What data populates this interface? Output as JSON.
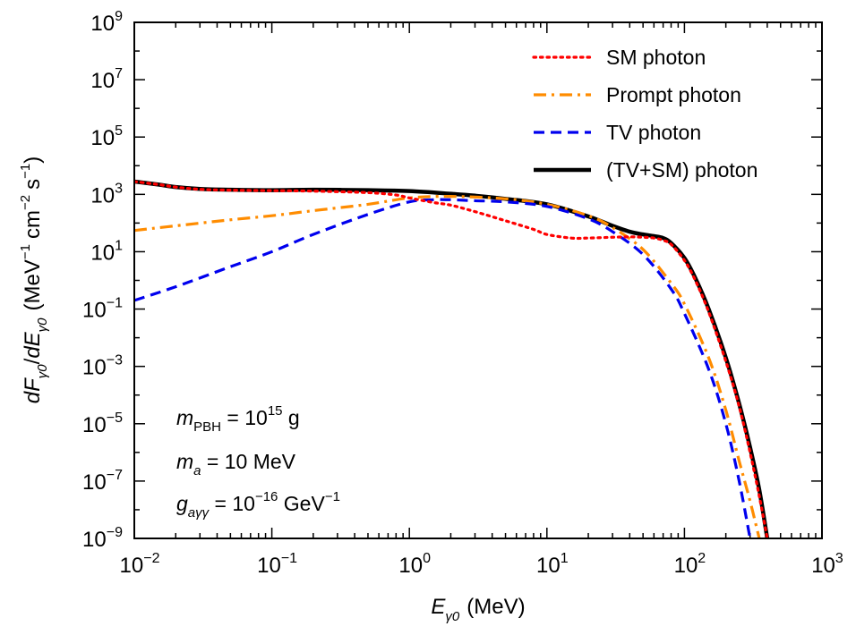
{
  "chart_data": {
    "type": "line",
    "x_scale": "log",
    "y_scale": "log",
    "xlim": [
      0.01,
      1000
    ],
    "ylim": [
      1e-09,
      1000000000.0
    ],
    "x_ticks": [
      {
        "base": "10",
        "exp": "−2",
        "value": 0.01
      },
      {
        "base": "10",
        "exp": "−1",
        "value": 0.1
      },
      {
        "base": "10",
        "exp": "0",
        "value": 1
      },
      {
        "base": "10",
        "exp": "1",
        "value": 10
      },
      {
        "base": "10",
        "exp": "2",
        "value": 100
      },
      {
        "base": "10",
        "exp": "3",
        "value": 1000
      }
    ],
    "y_ticks": [
      {
        "base": "10",
        "exp": "−9",
        "value": 1e-09
      },
      {
        "base": "10",
        "exp": "−7",
        "value": 1e-07
      },
      {
        "base": "10",
        "exp": "−5",
        "value": 1e-05
      },
      {
        "base": "10",
        "exp": "−3",
        "value": 0.001
      },
      {
        "base": "10",
        "exp": "−1",
        "value": 0.1
      },
      {
        "base": "10",
        "exp": "1",
        "value": 10
      },
      {
        "base": "10",
        "exp": "3",
        "value": 1000
      },
      {
        "base": "10",
        "exp": "5",
        "value": 100000.0
      },
      {
        "base": "10",
        "exp": "7",
        "value": 10000000.0
      },
      {
        "base": "10",
        "exp": "9",
        "value": 1000000000.0
      }
    ],
    "xlabel": {
      "var": "E",
      "sub": "γ0",
      "unit": "(MeV)"
    },
    "ylabel": {
      "num": "dF",
      "num_sub": "γ0",
      "slash": "/",
      "den": "dE",
      "den_sub": "γ0",
      "unit_open": "(MeV",
      "unit_exp1": "−1",
      "unit_mid": "cm",
      "unit_exp2": "−2",
      "unit_s": "s",
      "unit_exp3": "−1",
      "unit_close": ")"
    },
    "legend_position": "top-right",
    "series": [
      {
        "name": "SM photon",
        "color": "#ff0000",
        "style": "dotted",
        "x": [
          0.01,
          0.015,
          0.02,
          0.03,
          0.05,
          0.1,
          0.2,
          0.5,
          0.8,
          1.0,
          1.5,
          2,
          3,
          5,
          8,
          10,
          15,
          20,
          30,
          40,
          50,
          60,
          70,
          80,
          100,
          120,
          150,
          200,
          250,
          300,
          350,
          400
        ],
        "y": [
          2800,
          2200,
          1800,
          1500,
          1400,
          1350,
          1300,
          1150,
          950,
          750,
          520,
          420,
          250,
          120,
          60,
          40,
          30,
          30,
          32,
          33,
          32,
          30,
          25,
          18,
          5,
          1,
          0.08,
          0.0015,
          4e-05,
          1e-06,
          3e-08,
          1e-09
        ]
      },
      {
        "name": "Prompt photon",
        "color": "#ff8c00",
        "style": "dashdot",
        "x": [
          0.01,
          0.02,
          0.05,
          0.1,
          0.2,
          0.5,
          1,
          2,
          5,
          10,
          20,
          30,
          50,
          80,
          100,
          150,
          200,
          250,
          300,
          350
        ],
        "y": [
          55,
          80,
          130,
          180,
          270,
          450,
          750,
          850,
          700,
          450,
          180,
          70,
          12,
          0.8,
          0.15,
          0.002,
          3e-05,
          5e-07,
          2e-08,
          1e-09
        ]
      },
      {
        "name": "TV photon",
        "color": "#0000ee",
        "style": "dashed",
        "x": [
          0.01,
          0.02,
          0.05,
          0.1,
          0.2,
          0.5,
          1,
          1.5,
          2,
          3,
          5,
          10,
          20,
          30,
          50,
          80,
          100,
          150,
          200,
          250,
          300
        ],
        "y": [
          0.2,
          0.6,
          3,
          10,
          40,
          200,
          550,
          650,
          650,
          600,
          550,
          380,
          140,
          50,
          8,
          0.5,
          0.07,
          0.0008,
          1e-05,
          1e-07,
          1e-09
        ]
      },
      {
        "name": "(TV+SM) photon",
        "color": "#000000",
        "style": "solid",
        "x": [
          0.01,
          0.015,
          0.02,
          0.03,
          0.05,
          0.1,
          0.2,
          0.5,
          1,
          2,
          3,
          5,
          10,
          20,
          30,
          40,
          50,
          60,
          70,
          80,
          100,
          120,
          150,
          200,
          250,
          300,
          350,
          400
        ],
        "y": [
          2800,
          2200,
          1800,
          1550,
          1450,
          1400,
          1450,
          1400,
          1300,
          1050,
          900,
          700,
          450,
          170,
          80,
          50,
          40,
          35,
          30,
          20,
          6,
          1.2,
          0.1,
          0.002,
          5e-05,
          1.5e-06,
          5e-08,
          1e-09
        ]
      }
    ],
    "annotations": [
      {
        "parts": [
          {
            "t": "m",
            "style": "ital"
          },
          {
            "t": "PBH",
            "style": "sub"
          },
          {
            "t": " = 10",
            "style": "normal"
          },
          {
            "t": "15",
            "style": "sup"
          },
          {
            "t": " g",
            "style": "normal"
          }
        ]
      },
      {
        "parts": [
          {
            "t": "m",
            "style": "ital"
          },
          {
            "t": "a",
            "style": "sub-ital"
          },
          {
            "t": " = 10 MeV",
            "style": "normal"
          }
        ]
      },
      {
        "parts": [
          {
            "t": "g",
            "style": "ital"
          },
          {
            "t": "aγγ",
            "style": "sub-ital"
          },
          {
            "t": " = 10",
            "style": "normal"
          },
          {
            "t": "−16",
            "style": "sup"
          },
          {
            "t": " GeV",
            "style": "normal"
          },
          {
            "t": "−1",
            "style": "sup"
          }
        ]
      }
    ]
  }
}
